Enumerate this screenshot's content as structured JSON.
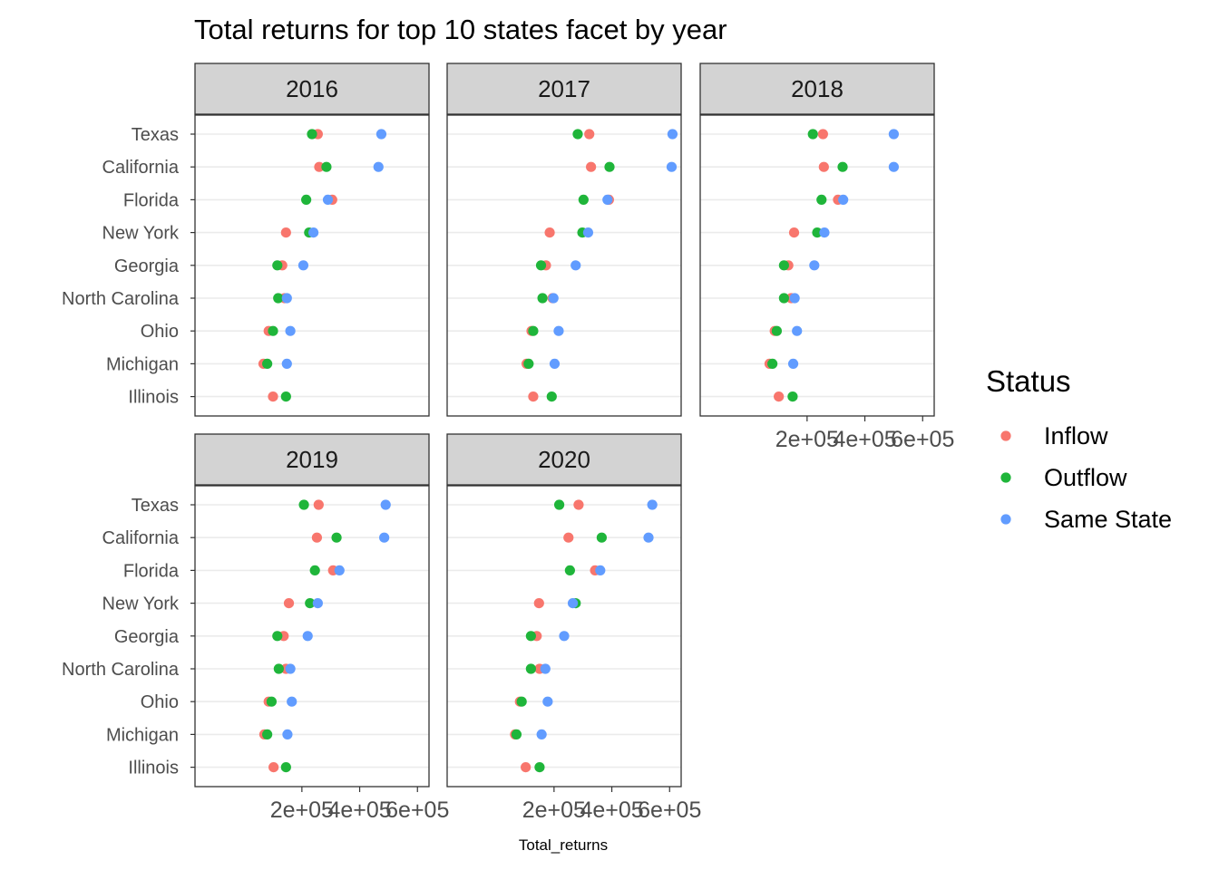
{
  "chart_data": {
    "type": "scatter",
    "title": "Total returns for top 10 states facet by year",
    "xlabel": "Total_returns",
    "ylabel": "",
    "xlim": [
      -170000,
      640000
    ],
    "x_ticks": [
      200000,
      400000,
      600000
    ],
    "x_tick_labels": [
      "2e+05",
      "4e+05",
      "6e+05"
    ],
    "categories": [
      "Texas",
      "California",
      "Florida",
      "New York",
      "Georgia",
      "North Carolina",
      "Ohio",
      "Michigan",
      "Illinois"
    ],
    "grid": "major gridlines on",
    "legend": {
      "title": "Status",
      "placement": "right",
      "entries": [
        "Inflow",
        "Outflow",
        "Same State"
      ]
    },
    "colors": {
      "Inflow": "#F8766D",
      "Outflow": "#1FB53A",
      "Same State": "#619CFF"
    },
    "facets": [
      {
        "label": "2016",
        "series": [
          {
            "name": "Inflow",
            "values": [
              255000,
              260000,
              305000,
              145000,
              132000,
              140000,
              85000,
              67000,
              100000
            ]
          },
          {
            "name": "Outflow",
            "values": [
              235000,
              285000,
              215000,
              225000,
              115000,
              118000,
              100000,
              80000,
              145000
            ]
          },
          {
            "name": "Same State",
            "values": [
              475000,
              465000,
              290000,
              240000,
              205000,
              148000,
              160000,
              148000,
              null
            ]
          }
        ]
      },
      {
        "label": "2017",
        "series": [
          {
            "name": "Inflow",
            "values": [
              322000,
              328000,
              390000,
              185000,
              172000,
              195000,
              122000,
              105000,
              128000
            ]
          },
          {
            "name": "Outflow",
            "values": [
              282000,
              392000,
              302000,
              298000,
              155000,
              160000,
              128000,
              112000,
              192000
            ]
          },
          {
            "name": "Same State",
            "values": [
              610000,
              607000,
              385000,
              318000,
              275000,
              198000,
              216000,
              202000,
              null
            ]
          }
        ]
      },
      {
        "label": "2018",
        "series": [
          {
            "name": "Inflow",
            "values": [
              255000,
              258000,
              307000,
              155000,
              135000,
              145000,
              88000,
              70000,
              102000
            ]
          },
          {
            "name": "Outflow",
            "values": [
              220000,
              323000,
              250000,
              235000,
              120000,
              120000,
              95000,
              80000,
              150000
            ]
          },
          {
            "name": "Same State",
            "values": [
              500000,
              500000,
              325000,
              260000,
              225000,
              157000,
              165000,
              152000,
              null
            ]
          }
        ]
      },
      {
        "label": "2019",
        "series": [
          {
            "name": "Inflow",
            "values": [
              258000,
              252000,
              308000,
              155000,
              137000,
              145000,
              85000,
              70000,
              102000
            ]
          },
          {
            "name": "Outflow",
            "values": [
              207000,
              320000,
              245000,
              228000,
              115000,
              120000,
              95000,
              80000,
              145000
            ]
          },
          {
            "name": "Same State",
            "values": [
              490000,
              485000,
              330000,
              255000,
              220000,
              160000,
              165000,
              150000,
              null
            ]
          }
        ]
      },
      {
        "label": "2020",
        "series": [
          {
            "name": "Inflow",
            "values": [
              285000,
              250000,
              342000,
              148000,
              140000,
              150000,
              82000,
              65000,
              102000
            ]
          },
          {
            "name": "Outflow",
            "values": [
              218000,
              365000,
              255000,
              275000,
              120000,
              120000,
              88000,
              70000,
              150000
            ]
          },
          {
            "name": "Same State",
            "values": [
              540000,
              527000,
              360000,
              265000,
              235000,
              170000,
              178000,
              157000,
              null
            ]
          }
        ]
      }
    ]
  }
}
